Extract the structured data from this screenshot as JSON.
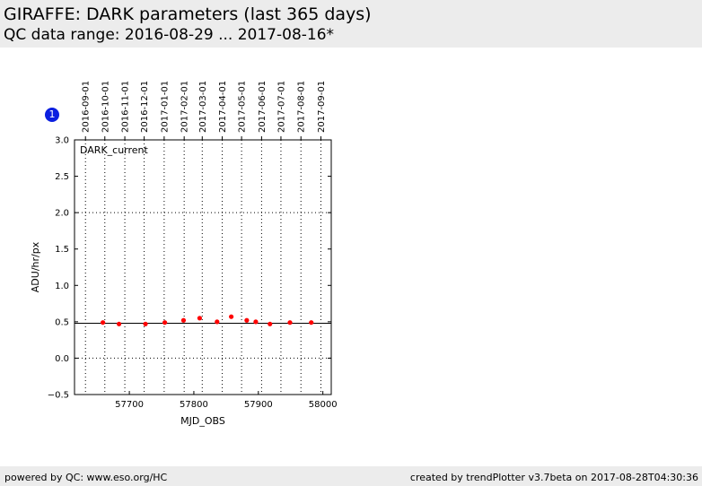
{
  "header": {
    "title": "GIRAFFE: DARK parameters (last 365 days)",
    "subtitle": "QC data range: 2016-08-29 ... 2017-08-16*"
  },
  "footer": {
    "left": "powered by QC: www.eso.org/HC",
    "right": "created by trendPlotter v3.7beta on 2017-08-28T04:30:36"
  },
  "badge": {
    "number": "1",
    "color": "#0b1fe0"
  },
  "chart_data": {
    "type": "scatter",
    "annotation": "DARK_current",
    "xlabel": "MJD_OBS",
    "ylabel": "ADU/hr/px",
    "xlim": [
      57615,
      58013
    ],
    "ylim": [
      -0.5,
      3.0
    ],
    "x_ticks": [
      57700,
      57800,
      57900,
      58000
    ],
    "y_ticks": [
      -0.5,
      0.0,
      0.5,
      1.0,
      1.5,
      2.0,
      2.5,
      3.0
    ],
    "y_tick_labels": [
      "−0.5",
      "0.0",
      "0.5",
      "1.0",
      "1.5",
      "2.0",
      "2.5",
      "3.0"
    ],
    "y_grid": [
      0.0,
      2.0
    ],
    "reference_line": 0.48,
    "top_axis_dates": [
      {
        "label": "2016-09-01",
        "mjd": 57632
      },
      {
        "label": "2016-10-01",
        "mjd": 57662
      },
      {
        "label": "2016-11-01",
        "mjd": 57693
      },
      {
        "label": "2016-12-01",
        "mjd": 57723
      },
      {
        "label": "2017-01-01",
        "mjd": 57754
      },
      {
        "label": "2017-02-01",
        "mjd": 57785
      },
      {
        "label": "2017-03-01",
        "mjd": 57813
      },
      {
        "label": "2017-04-01",
        "mjd": 57844
      },
      {
        "label": "2017-05-01",
        "mjd": 57874
      },
      {
        "label": "2017-06-01",
        "mjd": 57905
      },
      {
        "label": "2017-07-01",
        "mjd": 57935
      },
      {
        "label": "2017-08-01",
        "mjd": 57966
      },
      {
        "label": "2017-09-01",
        "mjd": 57997
      }
    ],
    "series": [
      {
        "color": "#ff0000",
        "points": [
          [
            57659,
            0.49
          ],
          [
            57684,
            0.47
          ],
          [
            57725,
            0.47
          ],
          [
            57755,
            0.49
          ],
          [
            57784,
            0.52
          ],
          [
            57809,
            0.55
          ],
          [
            57836,
            0.5
          ],
          [
            57858,
            0.57
          ],
          [
            57882,
            0.52
          ],
          [
            57896,
            0.5
          ],
          [
            57918,
            0.47
          ],
          [
            57949,
            0.49
          ],
          [
            57982,
            0.49
          ]
        ]
      }
    ]
  }
}
